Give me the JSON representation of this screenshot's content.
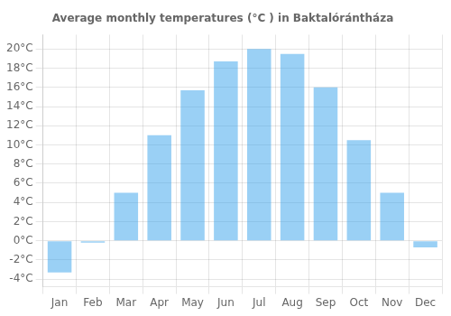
{
  "chart_data": {
    "type": "bar",
    "title": "Average monthly temperatures (°C ) in Baktalórántháza",
    "categories": [
      "Jan",
      "Feb",
      "Mar",
      "Apr",
      "May",
      "Jun",
      "Jul",
      "Aug",
      "Sep",
      "Oct",
      "Nov",
      "Dec"
    ],
    "values": [
      -3.3,
      -0.2,
      5.0,
      11.0,
      15.7,
      18.7,
      20.0,
      19.5,
      16.0,
      10.5,
      5.0,
      -0.7
    ],
    "ylim": [
      -4.8,
      21.5
    ],
    "yticks": [
      {
        "value": -4,
        "label": "-4°C"
      },
      {
        "value": -2,
        "label": "-2°C"
      },
      {
        "value": 0,
        "label": "0°C"
      },
      {
        "value": 2,
        "label": "2°C"
      },
      {
        "value": 4,
        "label": "4°C"
      },
      {
        "value": 6,
        "label": "6°C"
      },
      {
        "value": 8,
        "label": "8°C"
      },
      {
        "value": 10,
        "label": "10°C"
      },
      {
        "value": 12,
        "label": "12°C"
      },
      {
        "value": 14,
        "label": "14°C"
      },
      {
        "value": 16,
        "label": "16°C"
      },
      {
        "value": 18,
        "label": "18°C"
      },
      {
        "value": 20,
        "label": "20°C"
      }
    ],
    "grid": true
  }
}
